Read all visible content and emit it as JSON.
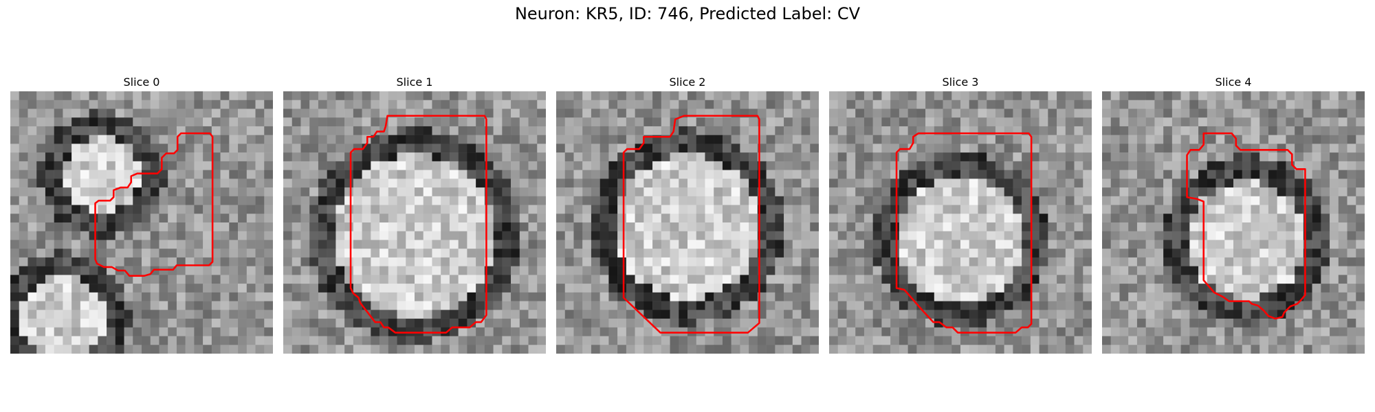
{
  "figure": {
    "title": "Neuron: KR5, ID: 746, Predicted Label: CV"
  },
  "colors": {
    "background": "#ffffff",
    "contour": "#ff0000",
    "image_colormap": "grayscale"
  },
  "panels": [
    {
      "title": "Slice 0"
    },
    {
      "title": "Slice 1"
    },
    {
      "title": "Slice 2"
    },
    {
      "title": "Slice 3"
    },
    {
      "title": "Slice 4"
    }
  ]
}
